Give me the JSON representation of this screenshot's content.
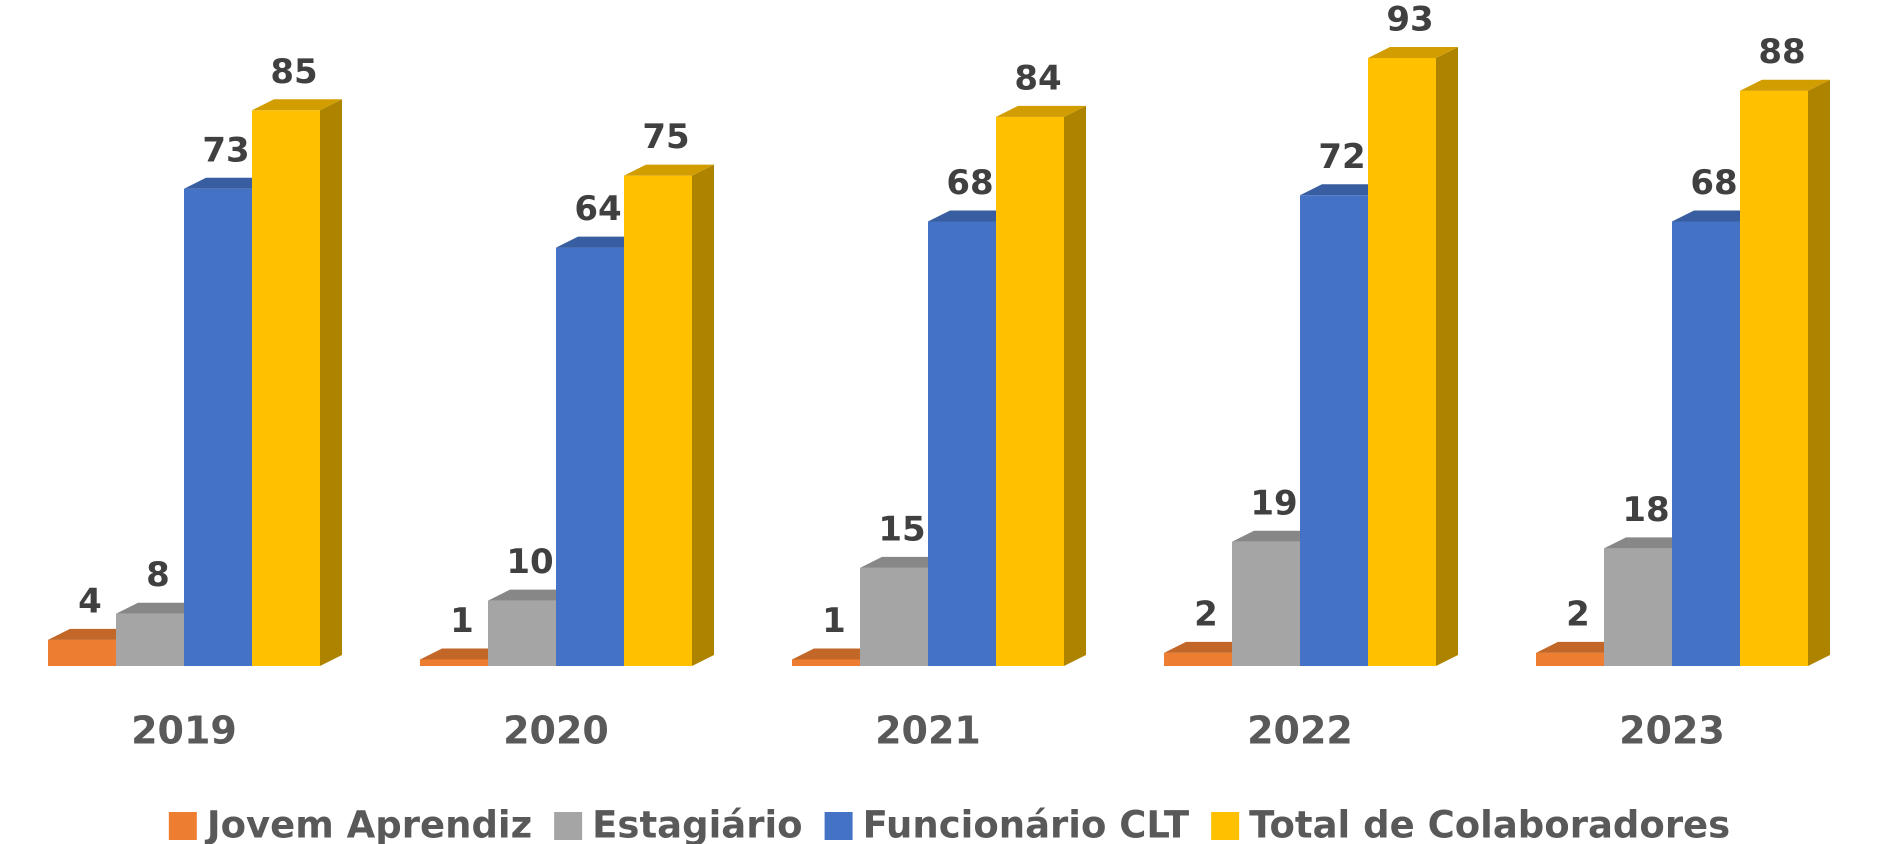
{
  "chart_data": {
    "type": "bar3d",
    "categories": [
      "2019",
      "2020",
      "2021",
      "2022",
      "2023"
    ],
    "series": [
      {
        "name": "Jovem Aprendiz",
        "color": "#ED7D31",
        "values": [
          4,
          1,
          1,
          2,
          2
        ]
      },
      {
        "name": "Estagiário",
        "color": "#A5A5A5",
        "values": [
          8,
          10,
          15,
          19,
          18
        ]
      },
      {
        "name": "Funcionário CLT",
        "color": "#4472C4",
        "values": [
          73,
          64,
          68,
          72,
          68
        ]
      },
      {
        "name": "Total de Colaboradores",
        "color": "#FFC000",
        "values": [
          85,
          75,
          84,
          93,
          88
        ]
      }
    ]
  }
}
